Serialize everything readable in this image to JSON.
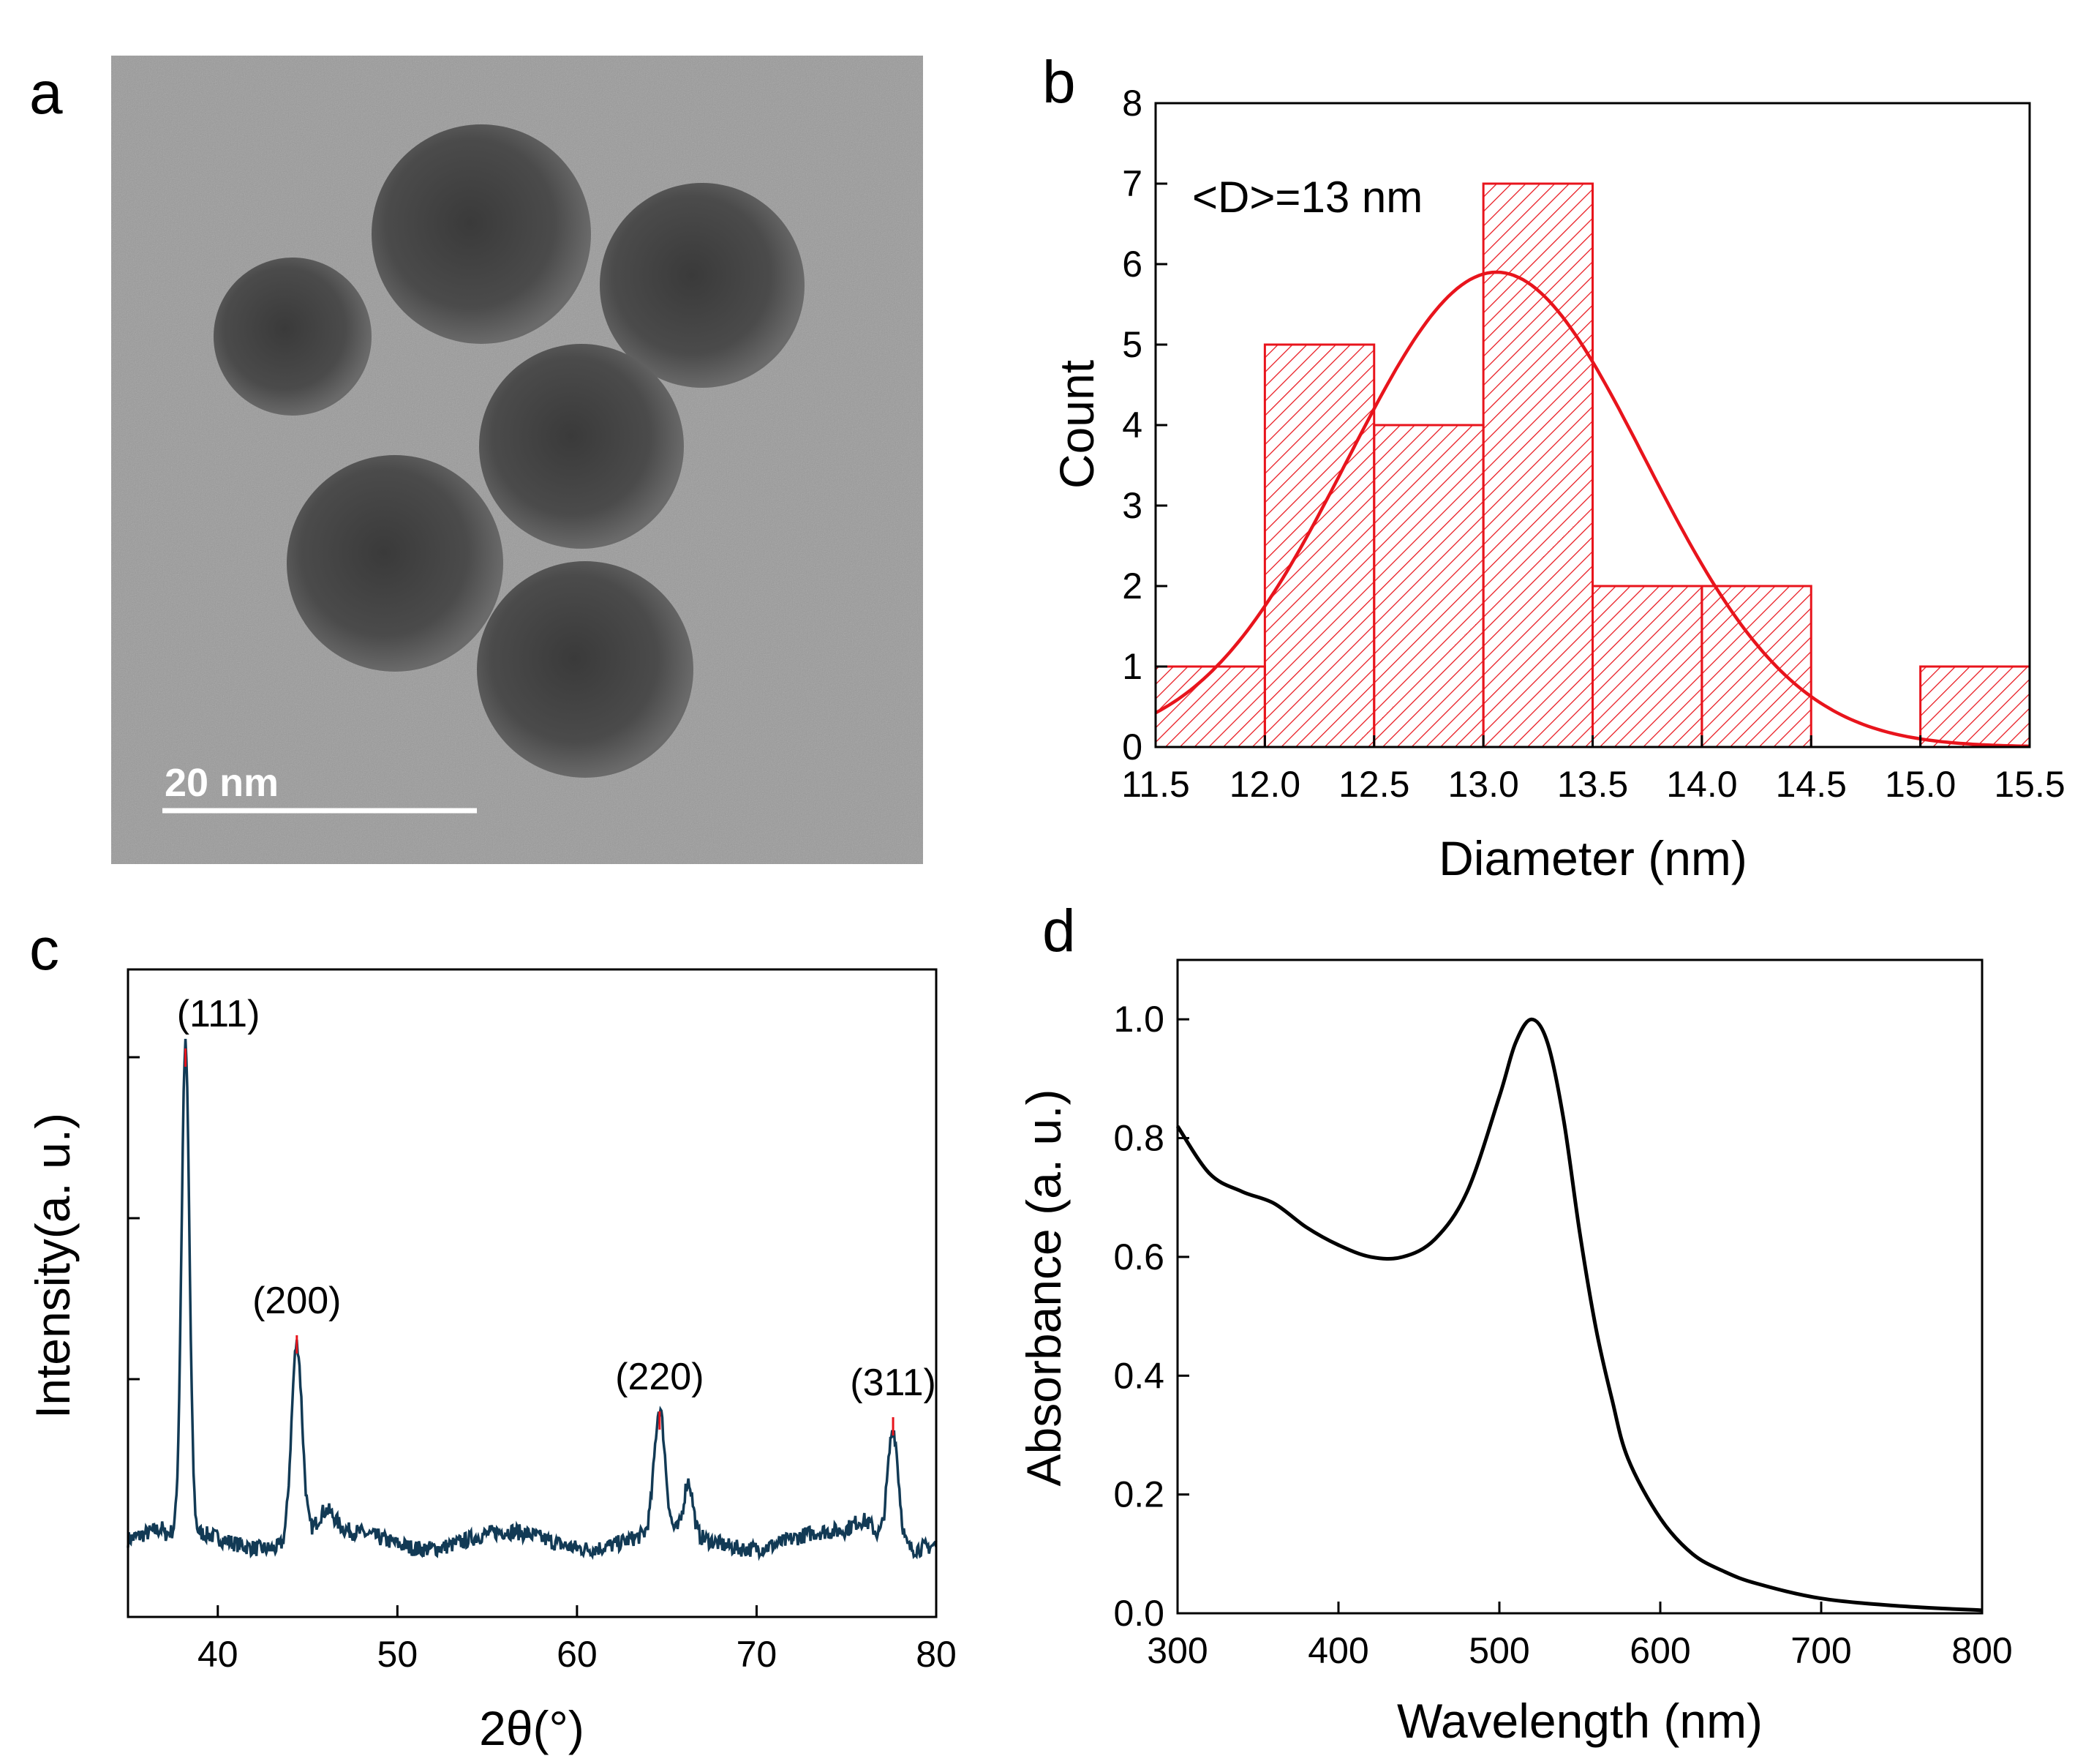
{
  "panels": {
    "a": {
      "label": "a",
      "scale_bar": "20 nm"
    },
    "b": {
      "label": "b"
    },
    "c": {
      "label": "c"
    },
    "d": {
      "label": "d"
    }
  },
  "chart_data": [
    {
      "panel": "b",
      "type": "bar",
      "title": "",
      "xlabel": "Diameter (nm)",
      "ylabel": "Count",
      "xlim": [
        11.5,
        15.5
      ],
      "ylim": [
        0,
        8
      ],
      "xticks": [
        "11.5",
        "12.0",
        "12.5",
        "13.0",
        "13.5",
        "14.0",
        "14.5",
        "15.0",
        "15.5"
      ],
      "yticks": [
        "0",
        "1",
        "2",
        "3",
        "4",
        "5",
        "6",
        "7",
        "8"
      ],
      "bin_edges": [
        11.5,
        12.0,
        12.5,
        13.0,
        13.5,
        14.0,
        14.5,
        15.0,
        15.5
      ],
      "values": [
        1,
        5,
        4,
        7,
        2,
        2,
        0,
        1
      ],
      "annotation": "<D>=13 nm",
      "fit": {
        "type": "gaussian",
        "center": 13.06,
        "sigma": 0.68,
        "amplitude": 5.9
      },
      "color": "#e8141c"
    },
    {
      "panel": "c",
      "type": "line",
      "xlabel": "2θ(°)",
      "ylabel": "Intensity(a. u.)",
      "xlim": [
        35,
        80
      ],
      "xticks": [
        "40",
        "50",
        "60",
        "70",
        "80"
      ],
      "peaks": [
        {
          "label": "(111)",
          "x": 38.2,
          "height": 0.83
        },
        {
          "label": "(200)",
          "x": 44.4,
          "height": 0.34
        },
        {
          "label": "(220)",
          "x": 64.6,
          "height": 0.21
        },
        {
          "label": "(311)",
          "x": 77.6,
          "height": 0.2
        }
      ],
      "color": "#123a55",
      "peak_marker_color": "#e8141c"
    },
    {
      "panel": "d",
      "type": "line",
      "xlabel": "Wavelength (nm)",
      "ylabel": "Absorbance (a. u.)",
      "xlim": [
        300,
        800
      ],
      "ylim": [
        0,
        1.1
      ],
      "xticks": [
        "300",
        "400",
        "500",
        "600",
        "700",
        "800"
      ],
      "yticks": [
        "0.0",
        "0.2",
        "0.4",
        "0.6",
        "0.8",
        "1.0"
      ],
      "x": [
        300,
        320,
        340,
        360,
        380,
        400,
        420,
        440,
        460,
        480,
        500,
        510,
        520,
        530,
        540,
        550,
        560,
        570,
        580,
        600,
        620,
        640,
        660,
        700,
        750,
        800
      ],
      "y": [
        0.82,
        0.74,
        0.71,
        0.69,
        0.65,
        0.62,
        0.6,
        0.6,
        0.63,
        0.71,
        0.87,
        0.96,
        1.0,
        0.96,
        0.83,
        0.64,
        0.48,
        0.36,
        0.26,
        0.16,
        0.1,
        0.07,
        0.05,
        0.025,
        0.012,
        0.005
      ],
      "color": "#000000"
    }
  ]
}
